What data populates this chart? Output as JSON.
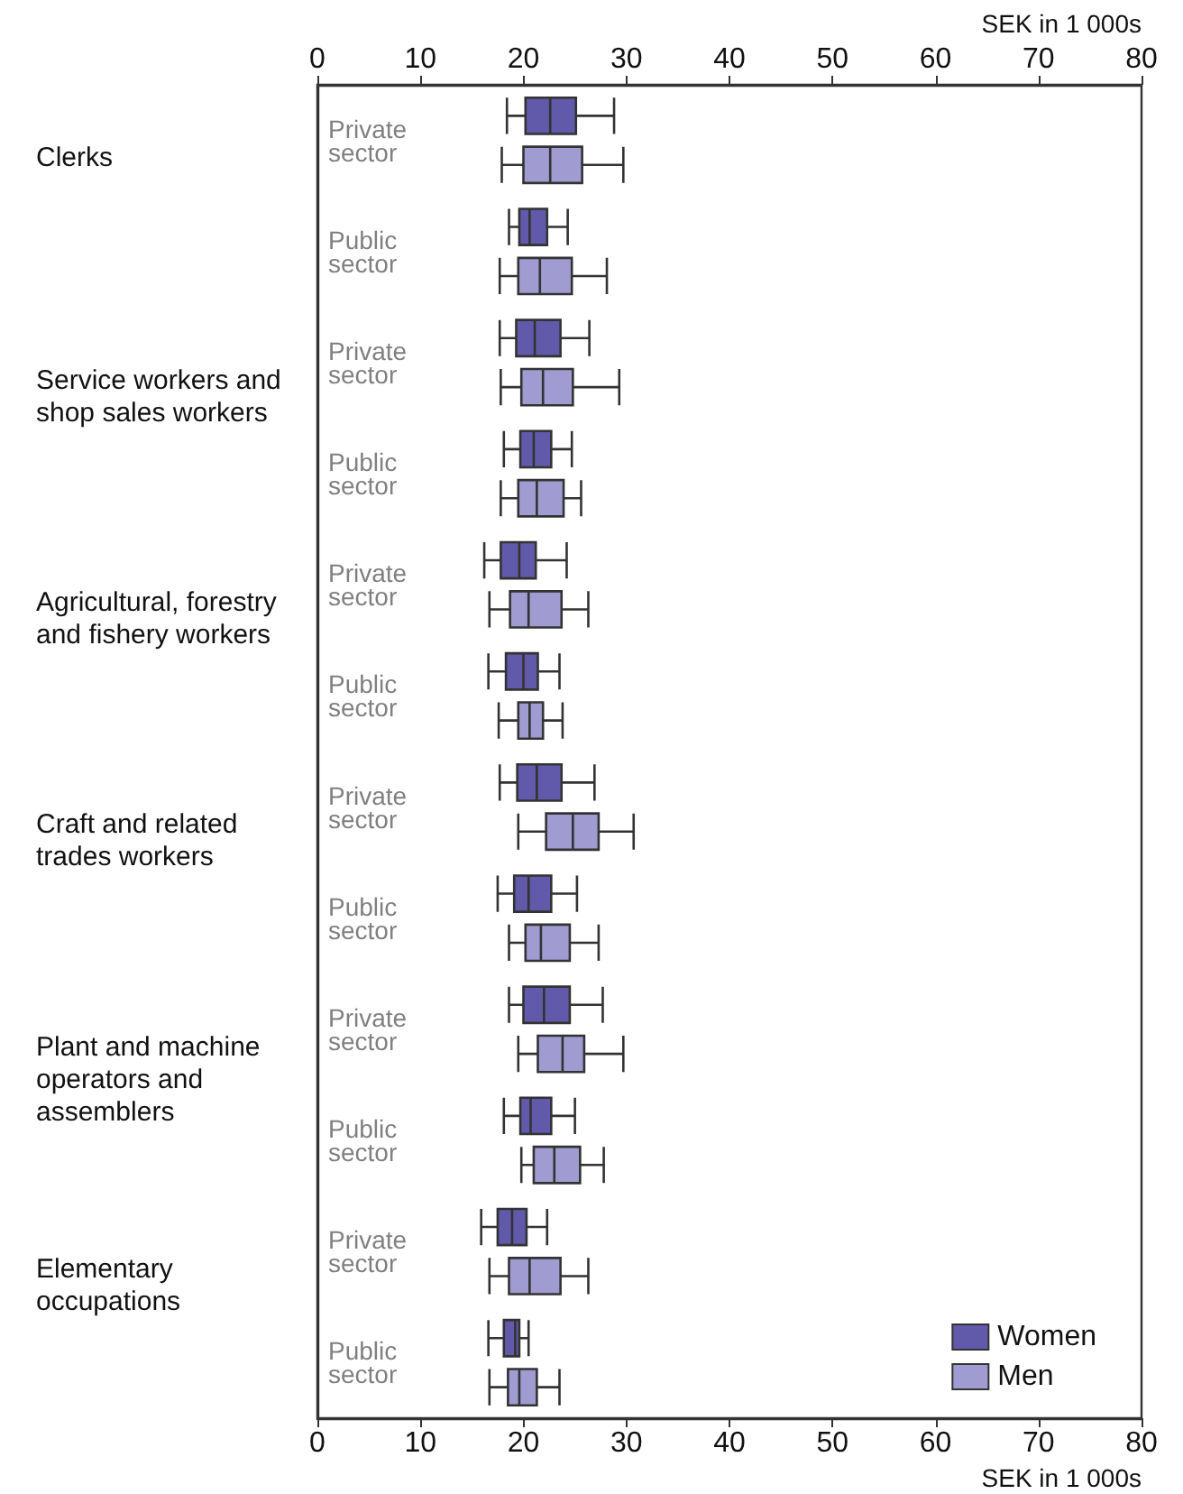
{
  "chart_data": {
    "type": "box",
    "orientation": "horizontal",
    "xlabel": "SEK in 1 000s",
    "x2label": "SEK in 1 000s",
    "xlim": [
      0,
      80
    ],
    "xticks": [
      0,
      10,
      20,
      30,
      40,
      50,
      60,
      70,
      80
    ],
    "x2lim": [
      0,
      80
    ],
    "x2ticks": [
      0,
      10,
      20,
      30,
      40,
      50,
      60,
      70,
      80
    ],
    "grid": false,
    "legend": "bottom right",
    "categories": [
      "Private sector",
      "Public sector",
      "Private sector",
      "Public sector",
      "Private sector",
      "Public sector",
      "Private sector",
      "Public sector",
      "Private sector",
      "Public sector",
      "Private sector",
      "Public sector"
    ],
    "annotations": [
      "Clerks",
      "Service workers and shop sales workers",
      "Agricultural, forestry and fishery workers",
      "Craft and related trades workers",
      "Plant and machine operators and assemblers",
      "Elementary occupations"
    ],
    "series": [
      {
        "name": "Women",
        "color": "#6159a9",
        "boxes": [
          {
            "low": 18.4,
            "q1": 20.2,
            "median": 22.6,
            "q3": 25.1,
            "high": 28.8
          },
          {
            "low": 18.6,
            "q1": 19.6,
            "median": 20.6,
            "q3": 22.3,
            "high": 24.3
          },
          {
            "low": 17.7,
            "q1": 19.3,
            "median": 21.1,
            "q3": 23.6,
            "high": 26.4
          },
          {
            "low": 18.1,
            "q1": 19.7,
            "median": 21.0,
            "q3": 22.7,
            "high": 24.7
          },
          {
            "low": 16.2,
            "q1": 17.8,
            "median": 19.6,
            "q3": 21.2,
            "high": 24.2
          },
          {
            "low": 16.6,
            "q1": 18.3,
            "median": 20.0,
            "q3": 21.4,
            "high": 23.5
          },
          {
            "low": 17.7,
            "q1": 19.4,
            "median": 21.3,
            "q3": 23.7,
            "high": 26.9
          },
          {
            "low": 17.5,
            "q1": 19.1,
            "median": 20.5,
            "q3": 22.7,
            "high": 25.2
          },
          {
            "low": 18.6,
            "q1": 20.0,
            "median": 22.0,
            "q3": 24.5,
            "high": 27.7
          },
          {
            "low": 18.1,
            "q1": 19.7,
            "median": 20.7,
            "q3": 22.7,
            "high": 25.0
          },
          {
            "low": 15.9,
            "q1": 17.5,
            "median": 18.9,
            "q3": 20.3,
            "high": 22.3
          },
          {
            "low": 16.6,
            "q1": 18.1,
            "median": 19.2,
            "q3": 19.6,
            "high": 20.5
          }
        ]
      },
      {
        "name": "Men",
        "color": "#a09bd0",
        "boxes": [
          {
            "low": 17.9,
            "q1": 20.0,
            "median": 22.6,
            "q3": 25.7,
            "high": 29.7
          },
          {
            "low": 17.7,
            "q1": 19.5,
            "median": 21.6,
            "q3": 24.7,
            "high": 28.1
          },
          {
            "low": 17.8,
            "q1": 19.8,
            "median": 21.9,
            "q3": 24.8,
            "high": 29.3
          },
          {
            "low": 17.8,
            "q1": 19.5,
            "median": 21.3,
            "q3": 23.9,
            "high": 25.6
          },
          {
            "low": 16.7,
            "q1": 18.7,
            "median": 20.5,
            "q3": 23.7,
            "high": 26.3
          },
          {
            "low": 17.6,
            "q1": 19.5,
            "median": 20.6,
            "q3": 21.9,
            "high": 23.8
          },
          {
            "low": 19.5,
            "q1": 22.2,
            "median": 24.8,
            "q3": 27.3,
            "high": 30.7
          },
          {
            "low": 18.6,
            "q1": 20.2,
            "median": 21.7,
            "q3": 24.5,
            "high": 27.3
          },
          {
            "low": 19.5,
            "q1": 21.4,
            "median": 23.8,
            "q3": 25.9,
            "high": 29.7
          },
          {
            "low": 19.8,
            "q1": 21.0,
            "median": 23.0,
            "q3": 25.5,
            "high": 27.8
          },
          {
            "low": 16.7,
            "q1": 18.6,
            "median": 20.6,
            "q3": 23.6,
            "high": 26.3
          },
          {
            "low": 16.7,
            "q1": 18.5,
            "median": 19.6,
            "q3": 21.3,
            "high": 23.5
          }
        ]
      }
    ]
  }
}
